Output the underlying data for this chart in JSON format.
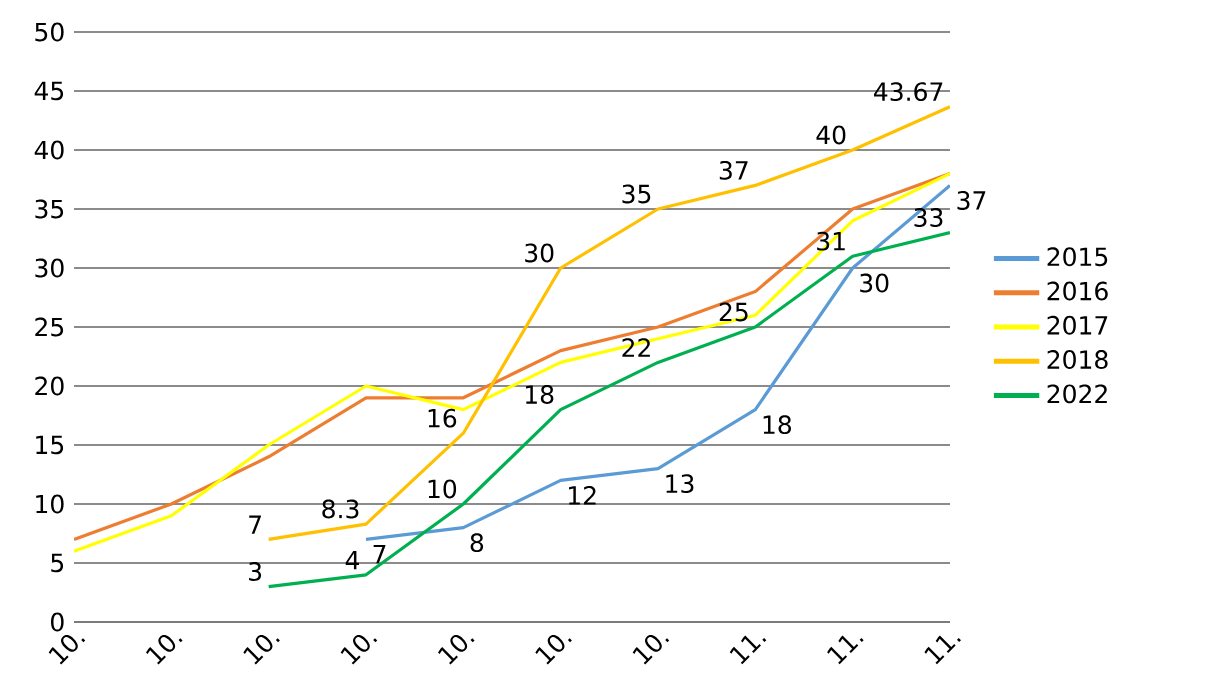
{
  "chart_data": {
    "type": "line",
    "categories": [
      "10.",
      "10.",
      "10.",
      "10.",
      "10.",
      "10.",
      "10.",
      "11.",
      "11.",
      "11."
    ],
    "ylim": [
      0,
      50
    ],
    "yticks": [
      0,
      5,
      10,
      15,
      20,
      25,
      30,
      35,
      40,
      45,
      50
    ],
    "grid": "y",
    "legend": "right",
    "marker": "none",
    "line_style": "solid",
    "series": [
      {
        "name": "2015",
        "color": "#5b9bd5",
        "values": [
          null,
          null,
          null,
          7,
          8,
          12,
          13,
          18,
          30,
          37
        ],
        "value_labels": [
          null,
          null,
          null,
          "7",
          "8",
          "12",
          "13",
          "18",
          "30",
          "37"
        ]
      },
      {
        "name": "2016",
        "color": "#ed7d31",
        "values": [
          7,
          10,
          14,
          19,
          19,
          23,
          25,
          28,
          35,
          38
        ]
      },
      {
        "name": "2017",
        "color": "#ffff00",
        "values": [
          6,
          9,
          15,
          20,
          18,
          22,
          24,
          26,
          34,
          38
        ]
      },
      {
        "name": "2018",
        "color": "#ffc000",
        "values": [
          null,
          null,
          7,
          8.3,
          16,
          30,
          35,
          37,
          40,
          43.67
        ],
        "value_labels": [
          null,
          null,
          "7",
          "8.3",
          "16",
          "30",
          "35",
          "37",
          "40",
          "43.67"
        ]
      },
      {
        "name": "2022",
        "color": "#00b050",
        "values": [
          null,
          null,
          3,
          4,
          10,
          18,
          22,
          25,
          31,
          33
        ],
        "value_labels": [
          null,
          null,
          "3",
          "4",
          "10",
          "18",
          "22",
          "25",
          "31",
          "33"
        ]
      }
    ]
  }
}
